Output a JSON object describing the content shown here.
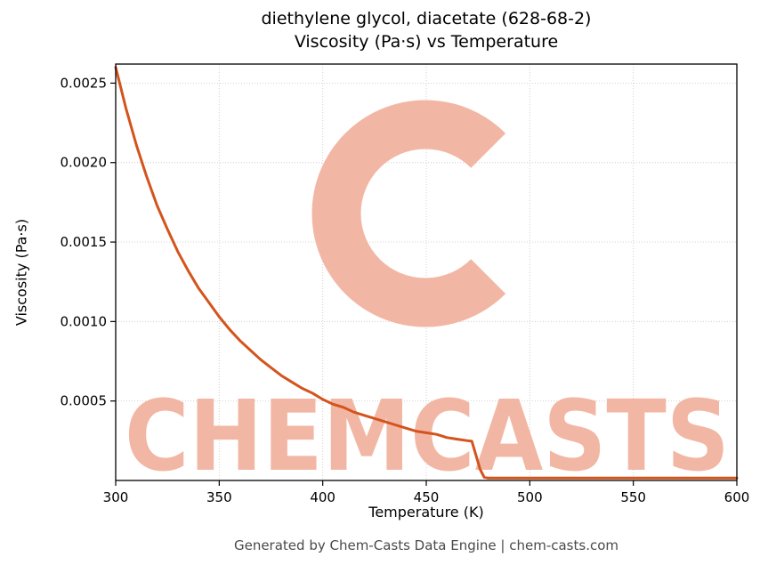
{
  "page": {
    "footer": "Generated by Chem-Casts Data Engine | chem-casts.com"
  },
  "watermark": {
    "text": "CHEMCASTS",
    "logo": "c-swirl-logo",
    "color": "#f2b7a4"
  },
  "chart_data": {
    "type": "line",
    "title": "diethylene glycol, diacetate (628-68-2)",
    "subtitle": "Viscosity (Pa·s) vs Temperature",
    "xlabel": "Temperature (K)",
    "ylabel": "Viscosity (Pa·s)",
    "xlim": [
      300,
      600
    ],
    "ylim": [
      0,
      0.00262
    ],
    "xticks": [
      300,
      350,
      400,
      450,
      500,
      550,
      600
    ],
    "yticks": [
      0.0005,
      0.001,
      0.0015,
      0.002,
      0.0025
    ],
    "ytick_labels": [
      "0.0005",
      "0.0010",
      "0.0015",
      "0.0020",
      "0.0025"
    ],
    "grid": true,
    "legend": false,
    "line_color": "#d3541c",
    "series": [
      {
        "name": "viscosity",
        "x": [
          300,
          305,
          310,
          315,
          320,
          325,
          330,
          335,
          340,
          345,
          350,
          355,
          360,
          365,
          370,
          375,
          380,
          385,
          390,
          395,
          400,
          405,
          410,
          415,
          420,
          425,
          430,
          435,
          440,
          445,
          450,
          455,
          460,
          465,
          470,
          472,
          474,
          476,
          478,
          480,
          490,
          500,
          520,
          540,
          560,
          580,
          600
        ],
        "y": [
          0.0026,
          0.00234,
          0.00211,
          0.00191,
          0.00173,
          0.00158,
          0.00144,
          0.00132,
          0.00121,
          0.00112,
          0.00103,
          0.00095,
          0.00088,
          0.00082,
          0.00076,
          0.00071,
          0.00066,
          0.00062,
          0.00058,
          0.00055,
          0.00051,
          0.00048,
          0.00046,
          0.00043,
          0.00041,
          0.00039,
          0.00037,
          0.00035,
          0.00033,
          0.00031,
          0.0003,
          0.00029,
          0.00027,
          0.00026,
          0.00025,
          0.000247,
          0.00016,
          7e-05,
          2e-05,
          1.5e-05,
          1.5e-05,
          1.5e-05,
          1.5e-05,
          1.5e-05,
          1.5e-05,
          1.5e-05,
          1.5e-05
        ]
      }
    ]
  }
}
